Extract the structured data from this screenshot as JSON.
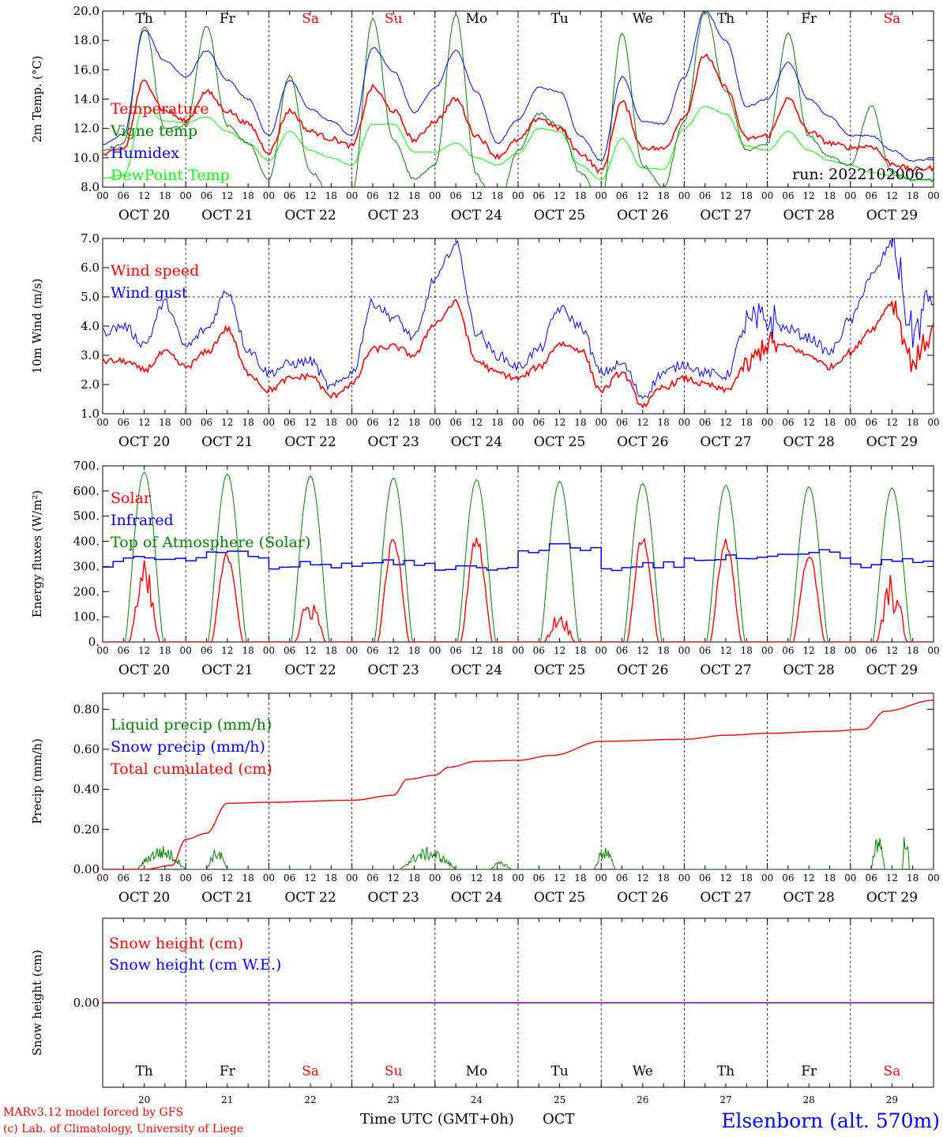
{
  "days": [
    {
      "abbr": "Th",
      "weekend": false,
      "date": "OCT 20",
      "num": "20"
    },
    {
      "abbr": "Fr",
      "weekend": false,
      "date": "OCT 21",
      "num": "21"
    },
    {
      "abbr": "Sa",
      "weekend": true,
      "date": "OCT 22",
      "num": "22"
    },
    {
      "abbr": "Su",
      "weekend": true,
      "date": "OCT 23",
      "num": "23"
    },
    {
      "abbr": "Mo",
      "weekend": false,
      "date": "OCT 24",
      "num": "24"
    },
    {
      "abbr": "Tu",
      "weekend": false,
      "date": "OCT 25",
      "num": "25"
    },
    {
      "abbr": "We",
      "weekend": false,
      "date": "OCT 26",
      "num": "26"
    },
    {
      "abbr": "Th",
      "weekend": false,
      "date": "OCT 27",
      "num": "27"
    },
    {
      "abbr": "Fr",
      "weekend": false,
      "date": "OCT 28",
      "num": "28"
    },
    {
      "abbr": "Sa",
      "weekend": true,
      "date": "OCT 29",
      "num": "29"
    }
  ],
  "hour_ticks": [
    "00",
    "06",
    "12",
    "18"
  ],
  "last_hour_tick": "00",
  "footer": {
    "model": "MARv3.12 model forced by GFS",
    "copyright": "(c) Lab. of Climatology, University of Liege",
    "xlabel": "Time UTC (GMT+0h)",
    "month": "OCT",
    "station": "Elsenborn (alt. 570m)"
  },
  "colors": {
    "red": "#ff0000",
    "green": "#008000",
    "blue": "#0000ff",
    "lime": "#00ff00",
    "purple": "#800080"
  },
  "chart_data": [
    {
      "type": "line",
      "ylabel": "2m Temp. (°C)",
      "ylim": [
        8.0,
        20.0
      ],
      "yticks": [
        "8.0",
        "10.0",
        "12.0",
        "14.0",
        "16.0",
        "18.0",
        "20.0"
      ],
      "run_label": "run: 2022102006",
      "x_hours": [
        0,
        6,
        12,
        18,
        24,
        30,
        36,
        42,
        48,
        54,
        60,
        66,
        72,
        78,
        84,
        90,
        96,
        102,
        108,
        114,
        120,
        126,
        132,
        138,
        144,
        150,
        156,
        162,
        168,
        174,
        180,
        186,
        192,
        198,
        204,
        210,
        216,
        222,
        228,
        234,
        240
      ],
      "series": [
        {
          "name": "Temperature",
          "color": "red",
          "values": [
            10.2,
            10.6,
            15.2,
            13.2,
            12.5,
            14.5,
            13.2,
            12.3,
            10.4,
            13.2,
            11.8,
            11.3,
            10.8,
            14.8,
            13.2,
            11.2,
            12.5,
            14.0,
            11.5,
            10.1,
            11.2,
            12.7,
            12.0,
            10.3,
            9.1,
            13.8,
            10.7,
            10.6,
            12.8,
            17.0,
            14.8,
            11.3,
            11.5,
            14.0,
            11.8,
            11.0,
            10.7,
            10.8,
            9.6,
            9.2,
            9.3
          ]
        },
        {
          "name": "Vigne temp",
          "color": "green",
          "values": [
            10.5,
            11.0,
            19.0,
            12.0,
            12.2,
            19.0,
            12.2,
            11.0,
            8.5,
            15.6,
            9.0,
            7.5,
            7.5,
            19.5,
            11.2,
            8.5,
            9.5,
            19.8,
            8.8,
            6.5,
            10.5,
            13.0,
            12.2,
            9.0,
            7.0,
            18.5,
            9.5,
            8.0,
            12.5,
            20.0,
            14.5,
            10.5,
            11.0,
            18.5,
            11.5,
            10.0,
            9.5,
            13.5,
            9.0,
            8.5,
            8.5
          ]
        },
        {
          "name": "Humidex",
          "color": "blue",
          "values": [
            10.9,
            11.6,
            18.7,
            16.6,
            15.5,
            17.3,
            15.3,
            14.0,
            11.5,
            15.3,
            13.3,
            12.5,
            11.5,
            17.5,
            15.9,
            13.1,
            14.8,
            17.3,
            14.5,
            11.0,
            12.6,
            14.8,
            14.5,
            11.5,
            9.8,
            15.5,
            12.5,
            12.3,
            15.5,
            20.0,
            18.0,
            13.5,
            14.0,
            16.5,
            14.0,
            12.8,
            11.5,
            11.5,
            10.5,
            9.8,
            9.9
          ]
        },
        {
          "name": "DewPoint Temp",
          "color": "lime",
          "values": [
            8.6,
            8.8,
            13.5,
            12.5,
            12.4,
            12.8,
            11.8,
            11.0,
            9.8,
            11.8,
            10.5,
            10.0,
            9.5,
            12.3,
            12.3,
            10.4,
            10.4,
            11.0,
            10.0,
            9.5,
            10.3,
            12.0,
            11.8,
            9.5,
            8.5,
            11.3,
            9.3,
            9.2,
            12.0,
            13.5,
            13.0,
            10.8,
            10.5,
            11.8,
            10.5,
            9.8,
            9.5,
            9.0,
            8.8,
            8.5,
            8.5
          ]
        }
      ]
    },
    {
      "type": "line",
      "ylabel": "10m Wind (m/s)",
      "ylim": [
        1.0,
        7.0
      ],
      "yticks": [
        "1.0",
        "2.0",
        "3.0",
        "4.0",
        "5.0",
        "6.0",
        "7.0"
      ],
      "x_hours": [
        0,
        6,
        12,
        18,
        24,
        30,
        36,
        42,
        48,
        54,
        60,
        66,
        72,
        78,
        84,
        90,
        96,
        102,
        108,
        114,
        120,
        126,
        132,
        138,
        144,
        150,
        156,
        162,
        168,
        174,
        180,
        186,
        192,
        198,
        204,
        210,
        216,
        222,
        228,
        234,
        240
      ],
      "series": [
        {
          "name": "Wind speed",
          "color": "red",
          "values": [
            2.8,
            2.8,
            2.5,
            3.1,
            2.6,
            3.1,
            3.9,
            2.4,
            1.8,
            2.2,
            2.3,
            1.6,
            2.0,
            3.2,
            3.3,
            3.0,
            4.1,
            4.8,
            2.8,
            2.4,
            2.2,
            2.6,
            3.4,
            3.2,
            1.8,
            2.4,
            1.3,
            1.9,
            2.2,
            2.0,
            1.8,
            2.6,
            3.4,
            3.3,
            3.0,
            2.6,
            3.1,
            3.9,
            4.8,
            2.8,
            3.8
          ]
        },
        {
          "name": "Wind gust",
          "color": "blue",
          "values": [
            3.8,
            4.0,
            3.4,
            4.8,
            3.3,
            3.9,
            5.2,
            3.2,
            2.4,
            2.7,
            2.8,
            1.9,
            2.4,
            4.8,
            4.3,
            3.6,
            5.6,
            6.8,
            3.8,
            3.0,
            2.6,
            3.2,
            4.6,
            4.0,
            2.4,
            2.7,
            1.6,
            2.4,
            2.7,
            2.4,
            2.3,
            4.0,
            4.2,
            3.9,
            3.6,
            3.1,
            4.2,
            5.7,
            6.8,
            3.8,
            5.1
          ]
        }
      ]
    },
    {
      "type": "line",
      "ylabel": "Energy fluxes (W/m²)",
      "ylim": [
        0,
        700
      ],
      "yticks": [
        "0.",
        "100.",
        "200.",
        "300.",
        "400.",
        "500.",
        "600.",
        "700."
      ],
      "series": [
        {
          "name": "Solar",
          "color": "red",
          "peaks": [
            330,
            360,
            200,
            420,
            430,
            130,
            430,
            410,
            360,
            280
          ]
        },
        {
          "name": "Infrared",
          "color": "blue",
          "base": [
            310,
            330,
            290,
            300,
            280,
            360,
            290,
            320,
            340,
            300
          ]
        },
        {
          "name": "Top of Atmosphere (Solar)",
          "color": "green",
          "peaks": [
            675,
            668,
            660,
            652,
            645,
            638,
            630,
            623,
            617,
            612
          ]
        }
      ]
    },
    {
      "type": "line",
      "ylabel": "Precip (mm/h)",
      "ylim": [
        0,
        0.88
      ],
      "yticks": [
        "0.00",
        "0.20",
        "0.40",
        "0.60",
        "0.80"
      ],
      "series": [
        {
          "name": "Liquid precip (mm/h)",
          "color": "green",
          "bursts": [
            [
              10,
              24,
              0.12
            ],
            [
              30,
              36,
              0.11
            ],
            [
              86,
              102,
              0.11
            ],
            [
              112,
              118,
              0.04
            ],
            [
              142,
              148,
              0.12
            ],
            [
              222,
              226,
              0.2
            ],
            [
              231,
              233,
              0.24
            ]
          ]
        },
        {
          "name": "Snow precip (mm/h)",
          "color": "blue",
          "values": []
        },
        {
          "name": "Total cumulated (cm)",
          "color": "red",
          "x_hours": [
            0,
            12,
            20,
            24,
            30,
            36,
            48,
            72,
            84,
            88,
            96,
            100,
            108,
            120,
            130,
            144,
            168,
            180,
            192,
            210,
            220,
            226,
            240
          ],
          "values": [
            0.0,
            0.0,
            0.02,
            0.15,
            0.18,
            0.33,
            0.335,
            0.345,
            0.37,
            0.45,
            0.47,
            0.51,
            0.54,
            0.545,
            0.57,
            0.64,
            0.65,
            0.67,
            0.68,
            0.69,
            0.7,
            0.79,
            0.845
          ]
        }
      ]
    },
    {
      "type": "line",
      "ylabel": "Snow height (cm)",
      "ylim": [
        -0.03,
        0.03
      ],
      "yticks": [
        "0.00"
      ],
      "series": [
        {
          "name": "Snow height (cm)",
          "color": "red",
          "values": [
            0,
            0
          ]
        },
        {
          "name": "Snow height (cm W.E.)",
          "color": "blue",
          "values": [
            0,
            0
          ]
        }
      ]
    }
  ]
}
